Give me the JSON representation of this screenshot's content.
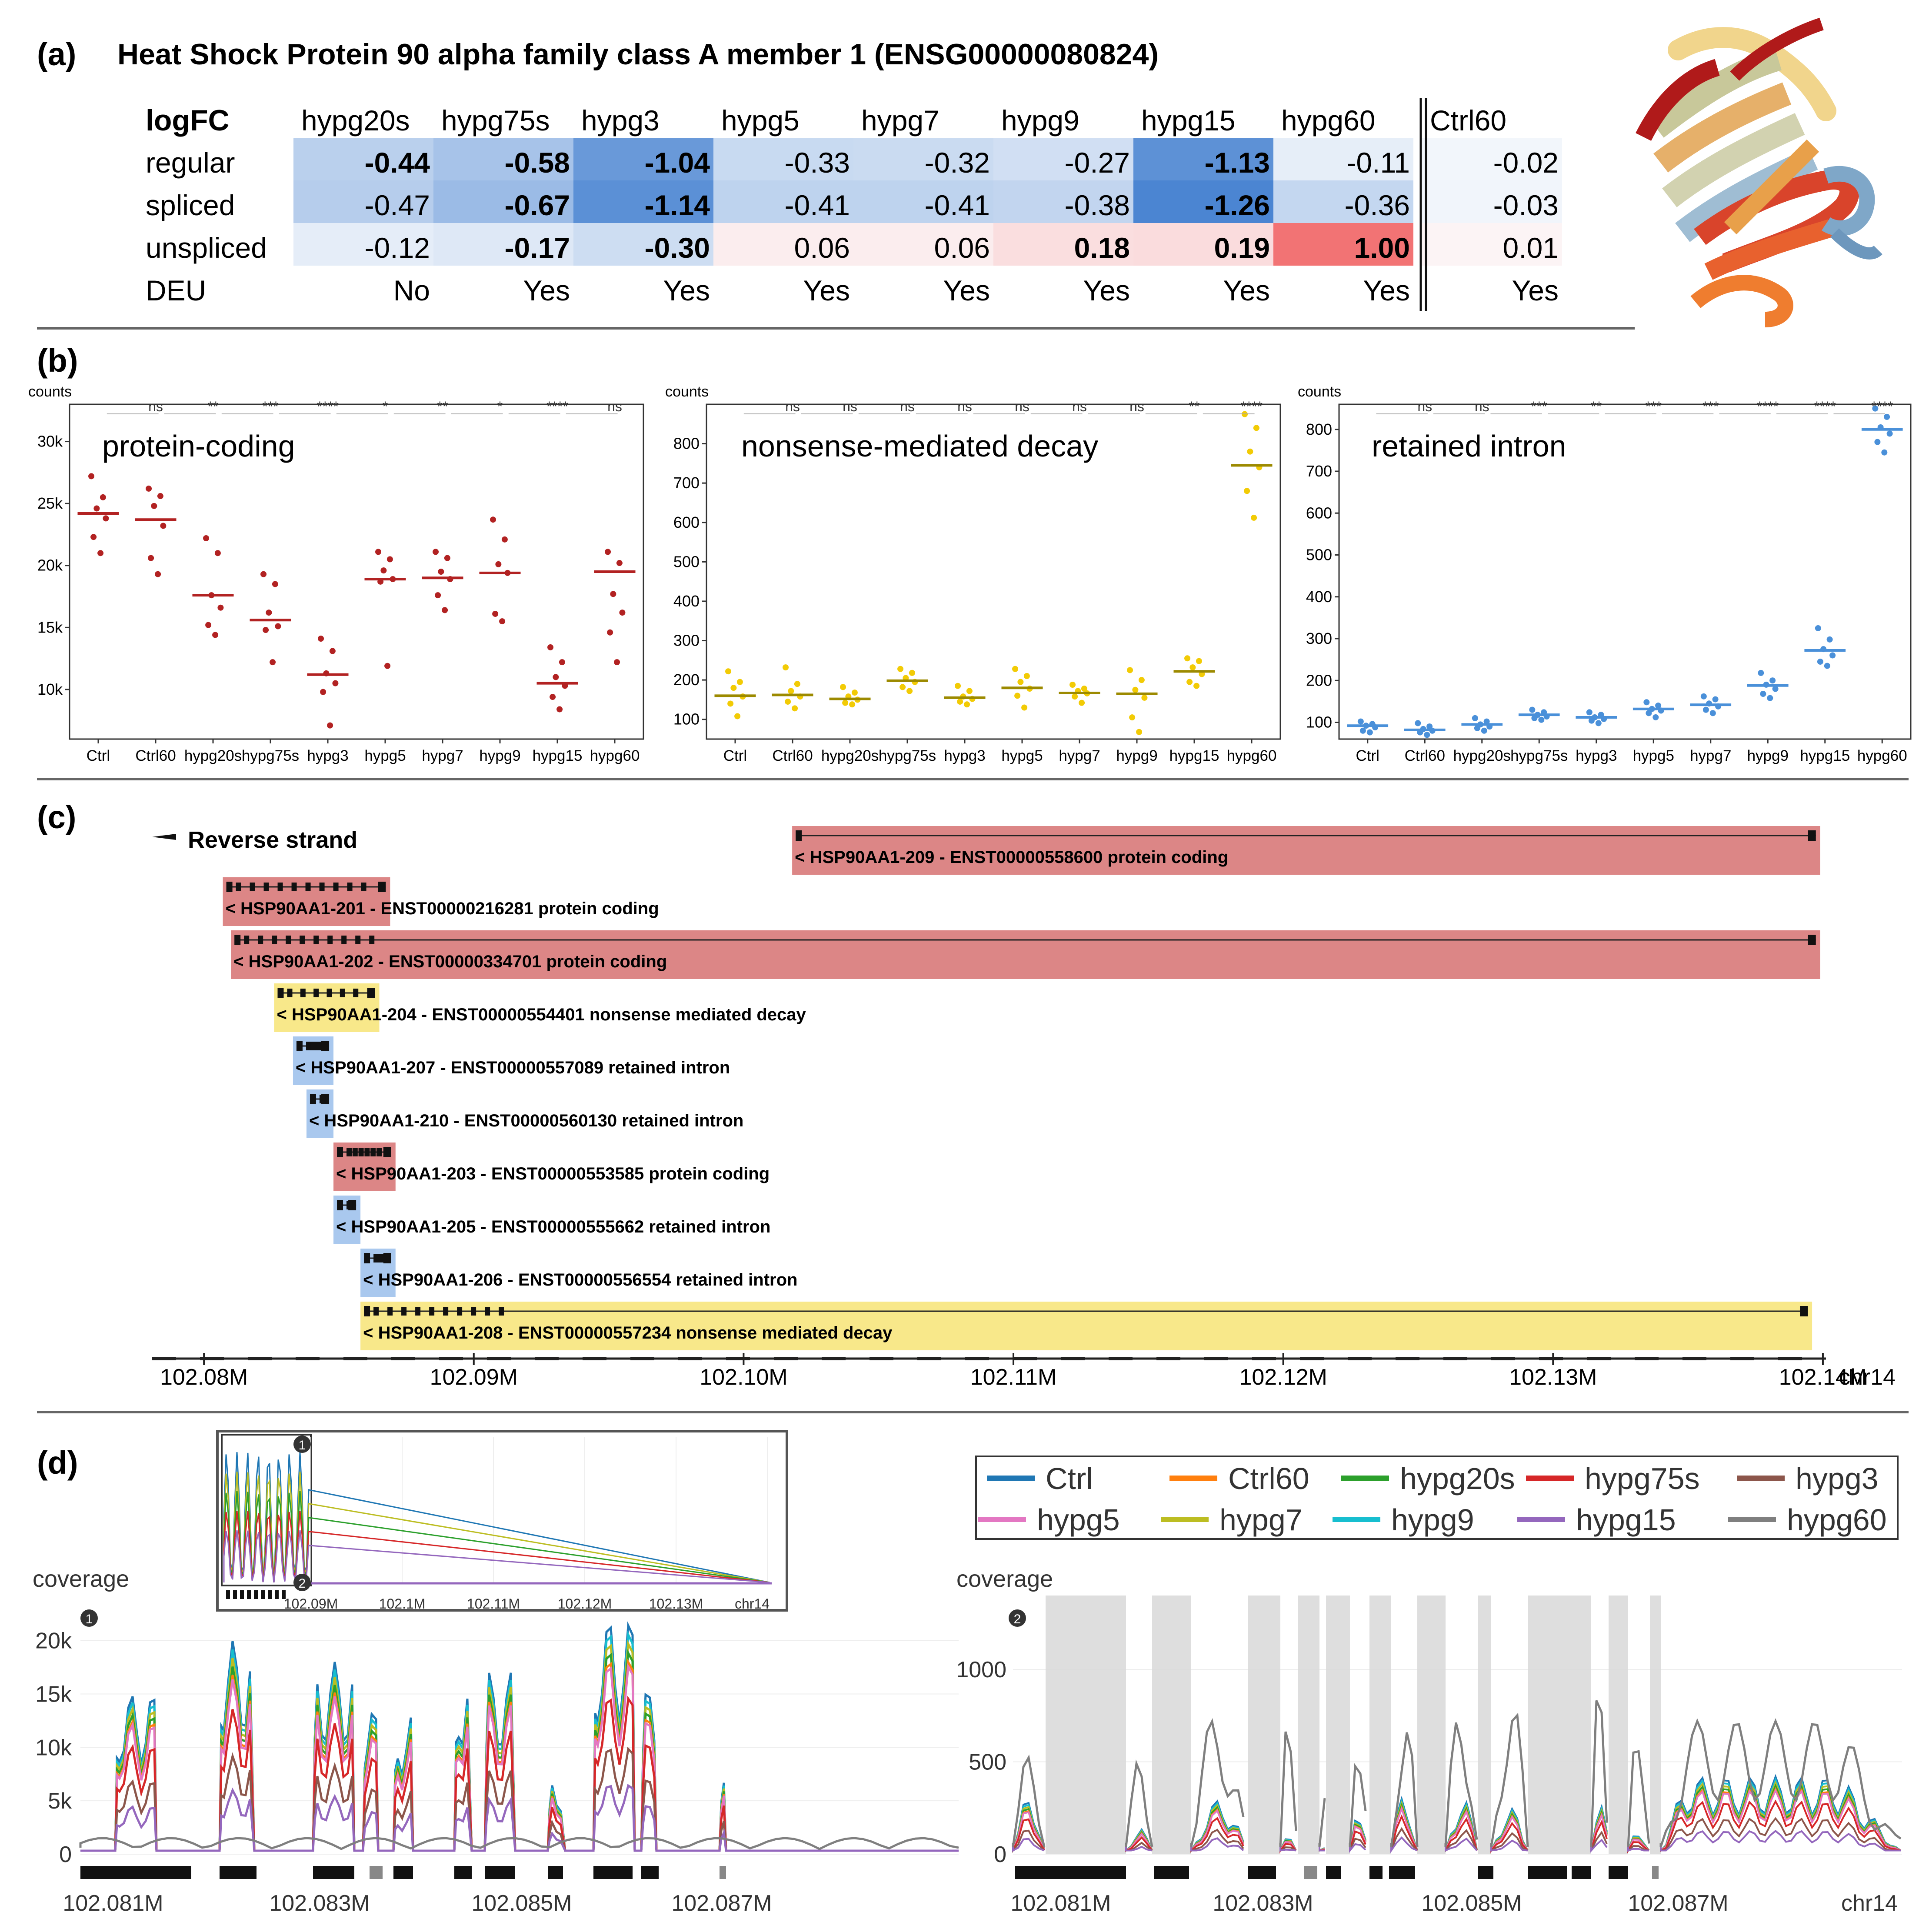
{
  "panel_a": {
    "label": "(a)",
    "title": "Heat Shock Protein 90 alpha family class A member 1 (ENSG00000080824)",
    "header_label": "logFC",
    "columns": [
      "hypg20s",
      "hypg75s",
      "hypg3",
      "hypg5",
      "hypg7",
      "hypg9",
      "hypg15",
      "hypg60",
      "Ctrl60"
    ],
    "rows": [
      {
        "label": "regular",
        "values": [
          "-0.44",
          "-0.58",
          "-1.04",
          "-0.33",
          "-0.32",
          "-0.27",
          "-1.13",
          "-0.11",
          "-0.02"
        ],
        "bold": [
          true,
          true,
          true,
          false,
          false,
          false,
          true,
          false,
          false
        ]
      },
      {
        "label": "spliced",
        "values": [
          "-0.47",
          "-0.67",
          "-1.14",
          "-0.41",
          "-0.41",
          "-0.38",
          "-1.26",
          "-0.36",
          "-0.03"
        ],
        "bold": [
          false,
          true,
          true,
          false,
          false,
          false,
          true,
          false,
          false
        ]
      },
      {
        "label": "unspliced",
        "values": [
          "-0.12",
          "-0.17",
          "-0.30",
          "0.06",
          "0.06",
          "0.18",
          "0.19",
          "1.00",
          "0.01"
        ],
        "bold": [
          false,
          true,
          true,
          false,
          false,
          true,
          true,
          true,
          false
        ]
      },
      {
        "label": "DEU",
        "values": [
          "No",
          "Yes",
          "Yes",
          "Yes",
          "Yes",
          "Yes",
          "Yes",
          "Yes",
          "Yes"
        ],
        "bold": [
          false,
          false,
          false,
          false,
          false,
          false,
          false,
          false,
          false
        ]
      }
    ]
  },
  "panel_b": {
    "label": "(b)",
    "y_axis_title": "counts",
    "categories": [
      "Ctrl",
      "Ctrl60",
      "hypg20s",
      "hypg75s",
      "hypg3",
      "hypg5",
      "hypg7",
      "hypg9",
      "hypg15",
      "hypg60"
    ],
    "charts": [
      {
        "name": "protein-coding",
        "color": "#b22222",
        "ylim": [
          6000,
          33000
        ],
        "yticks": [
          10000,
          15000,
          20000,
          25000,
          30000
        ],
        "ytick_labels": [
          "10k",
          "15k",
          "20k",
          "25k",
          "30k"
        ],
        "medians": [
          24200,
          23700,
          17600,
          15600,
          11200,
          18900,
          19000,
          19400,
          10500,
          19500
        ],
        "points": [
          [
            27200,
            25500,
            24600,
            23800,
            22300,
            21000
          ],
          [
            26200,
            25600,
            24800,
            23200,
            20600,
            19300
          ],
          [
            22200,
            21000,
            17600,
            16600,
            15200,
            14400
          ],
          [
            19300,
            18500,
            16200,
            15100,
            14800,
            12200
          ],
          [
            14100,
            13100,
            11300,
            10500,
            9800,
            7100
          ],
          [
            21100,
            20500,
            19600,
            18900,
            18700,
            11900
          ],
          [
            21100,
            20600,
            19500,
            18900,
            17600,
            16400
          ],
          [
            23700,
            22100,
            20100,
            19400,
            16100,
            15500
          ],
          [
            13400,
            12200,
            11000,
            10300,
            9400,
            8400
          ],
          [
            21100,
            20200,
            17700,
            16200,
            14600,
            12200
          ]
        ],
        "signif": [
          "ns",
          "**",
          "***",
          "****",
          "*",
          "**",
          "*",
          "****",
          "ns"
        ]
      },
      {
        "name": "nonsense-mediated decay",
        "color": "#f2cb05",
        "line_color": "#9c8a00",
        "ylim": [
          50,
          900
        ],
        "yticks": [
          100,
          200,
          300,
          400,
          500,
          600,
          700,
          800
        ],
        "ytick_labels": [
          "100",
          "200",
          "300",
          "400",
          "500",
          "600",
          "700",
          "800"
        ],
        "medians": [
          160,
          162,
          152,
          198,
          155,
          180,
          167,
          165,
          222,
          745
        ],
        "points": [
          [
            222,
            195,
            180,
            158,
            140,
            108
          ],
          [
            232,
            190,
            172,
            158,
            145,
            128
          ],
          [
            182,
            168,
            158,
            150,
            142,
            138
          ],
          [
            228,
            218,
            205,
            195,
            182,
            172
          ],
          [
            185,
            172,
            158,
            152,
            145,
            138
          ],
          [
            228,
            210,
            195,
            178,
            160,
            130
          ],
          [
            188,
            178,
            172,
            166,
            158,
            142
          ],
          [
            225,
            200,
            175,
            155,
            105,
            68
          ],
          [
            255,
            248,
            232,
            215,
            195,
            185
          ],
          [
            875,
            840,
            780,
            740,
            680,
            612
          ]
        ],
        "signif": [
          "ns",
          "ns",
          "ns",
          "ns",
          "ns",
          "ns",
          "ns",
          "**",
          "****"
        ]
      },
      {
        "name": "retained intron",
        "color": "#4a90d9",
        "ylim": [
          60,
          860
        ],
        "yticks": [
          100,
          200,
          300,
          400,
          500,
          600,
          700,
          800
        ],
        "ytick_labels": [
          "100",
          "200",
          "300",
          "400",
          "500",
          "600",
          "700",
          "800"
        ],
        "medians": [
          92,
          82,
          95,
          118,
          112,
          132,
          142,
          188,
          272,
          800
        ],
        "points": [
          [
            102,
            96,
            92,
            88,
            80,
            76
          ],
          [
            98,
            90,
            84,
            80,
            76,
            70
          ],
          [
            110,
            102,
            95,
            90,
            86,
            80
          ],
          [
            130,
            124,
            118,
            114,
            110,
            106
          ],
          [
            124,
            118,
            112,
            108,
            104,
            98
          ],
          [
            148,
            140,
            132,
            128,
            122,
            112
          ],
          [
            162,
            155,
            145,
            138,
            130,
            122
          ],
          [
            218,
            200,
            190,
            180,
            168,
            158
          ],
          [
            325,
            298,
            275,
            260,
            245,
            235
          ],
          [
            850,
            830,
            805,
            790,
            770,
            745
          ]
        ],
        "signif": [
          "ns",
          "ns",
          "***",
          "**",
          "***",
          "***",
          "****",
          "****",
          "****"
        ]
      }
    ]
  },
  "panel_c": {
    "label": "(c)",
    "strand_label": "Reverse strand",
    "axis_labels": [
      "102.08M",
      "102.09M",
      "102.10M",
      "102.11M",
      "102.12M",
      "102.13M",
      "102.14M"
    ],
    "chrom": "chr14",
    "transcripts": [
      {
        "text": "< HSP90AA1-209 - ENST00000558600 protein coding",
        "type": "protein coding",
        "start": 102101800,
        "end": 102139900
      },
      {
        "text": "< HSP90AA1-201 - ENST00000216281 protein coding",
        "type": "protein coding",
        "start": 102080700,
        "end": 102086900
      },
      {
        "text": "< HSP90AA1-202 - ENST00000334701 protein coding",
        "type": "protein coding",
        "start": 102081000,
        "end": 102139900
      },
      {
        "text": "< HSP90AA1-204 - ENST00000554401 nonsense mediated decay",
        "type": "nonsense mediated decay",
        "start": 102082600,
        "end": 102086500
      },
      {
        "text": "< HSP90AA1-207 - ENST00000557089 retained intron",
        "type": "retained intron",
        "start": 102083300,
        "end": 102084800
      },
      {
        "text": "< HSP90AA1-210 - ENST00000560130 retained intron",
        "type": "retained intron",
        "start": 102083800,
        "end": 102084800
      },
      {
        "text": "< HSP90AA1-203 - ENST00000553585 protein coding",
        "type": "protein coding",
        "start": 102084800,
        "end": 102087100
      },
      {
        "text": "< HSP90AA1-205 - ENST00000555662 retained intron",
        "type": "retained intron",
        "start": 102084800,
        "end": 102085800
      },
      {
        "text": "< HSP90AA1-206 - ENST00000556554 retained intron",
        "type": "retained intron",
        "start": 102085800,
        "end": 102087100
      },
      {
        "text": "< HSP90AA1-208 - ENST00000557234 nonsense mediated decay",
        "type": "nonsense mediated decay",
        "start": 102085800,
        "end": 102139600
      }
    ],
    "colors": {
      "protein coding": "#dc8686",
      "nonsense mediated decay": "#f8e88a",
      "retained intron": "#a9c8ee"
    }
  },
  "panel_d": {
    "label": "(d)",
    "y_axis_title": "coverage",
    "legend": [
      {
        "name": "Ctrl",
        "color": "#1f77b4"
      },
      {
        "name": "Ctrl60",
        "color": "#ff7f0e"
      },
      {
        "name": "hypg20s",
        "color": "#2ca02c"
      },
      {
        "name": "hypg75s",
        "color": "#d62728"
      },
      {
        "name": "hypg3",
        "color": "#8c564b"
      },
      {
        "name": "hypg5",
        "color": "#e377c2"
      },
      {
        "name": "hypg7",
        "color": "#bcbd22"
      },
      {
        "name": "hypg9",
        "color": "#17becf"
      },
      {
        "name": "hypg15",
        "color": "#9467bd"
      },
      {
        "name": "hypg60",
        "color": "#7f7f7f"
      }
    ],
    "left_yticks": [
      "0",
      "5k",
      "10k",
      "15k",
      "20k"
    ],
    "left_xticks": [
      "102.081M",
      "102.083M",
      "102.085M",
      "102.087M"
    ],
    "right_yticks": [
      "0",
      "500",
      "1000"
    ],
    "right_xticks": [
      "102.081M",
      "102.083M",
      "102.085M",
      "102.087M"
    ],
    "right_chrom": "chr14",
    "inset_xticks": [
      "102.09M",
      "102.1M",
      "102.11M",
      "102.12M",
      "102.13M"
    ],
    "inset_chrom": "chr14",
    "marker1": "1",
    "marker2": "2"
  }
}
